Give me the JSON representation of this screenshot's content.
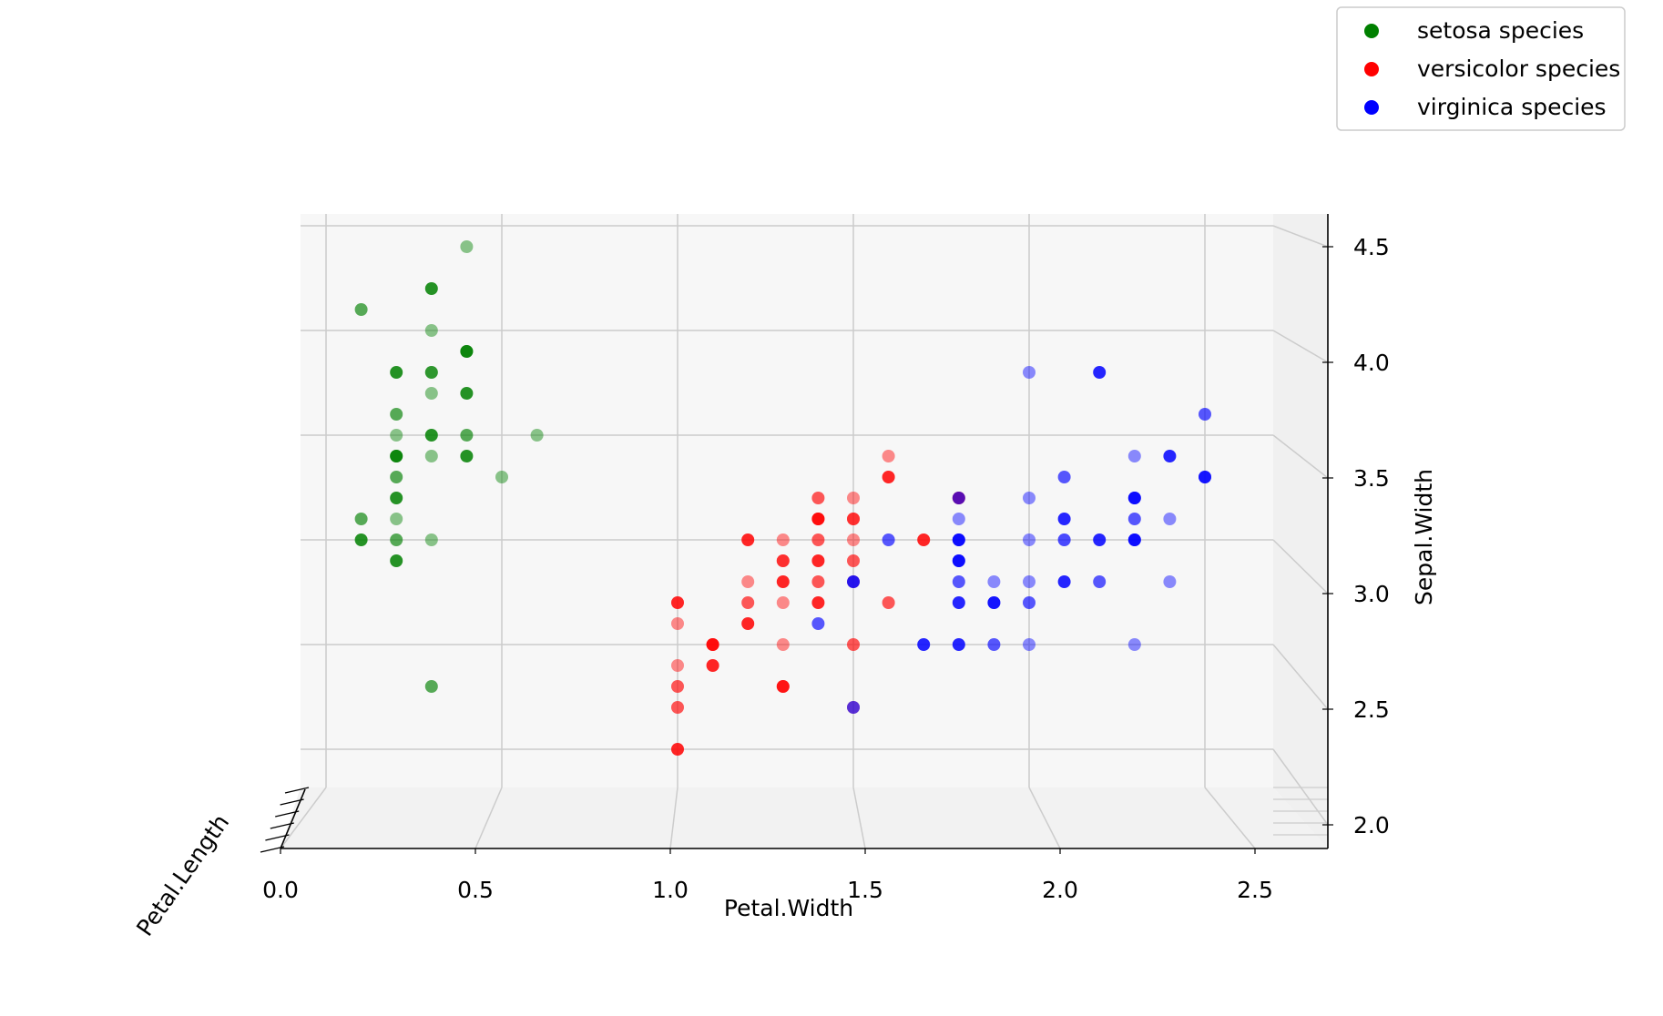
{
  "chart_data": {
    "type": "scatter",
    "projection": "3d",
    "title": "",
    "xlabel": "Petal.Width",
    "ylabel": "Petal.Length",
    "zlabel": "Sepal.Width",
    "xlim": [
      0.0,
      2.6
    ],
    "zlim": [
      2.0,
      4.5
    ],
    "x_ticks": [
      "0.0",
      "0.5",
      "1.0",
      "1.5",
      "2.0",
      "2.5"
    ],
    "z_ticks": [
      "2.0",
      "2.5",
      "3.0",
      "3.5",
      "4.0",
      "4.5"
    ],
    "grid": true,
    "legend_placement": "top-right",
    "series": [
      {
        "name": "setosa species",
        "color": "#008000",
        "points": [
          [
            0.4,
            4.4
          ],
          [
            0.3,
            4.2
          ],
          [
            0.1,
            4.1
          ],
          [
            0.3,
            4.0
          ],
          [
            0.4,
            3.9
          ],
          [
            0.4,
            3.9
          ],
          [
            0.3,
            3.8
          ],
          [
            0.2,
            3.8
          ],
          [
            0.3,
            3.8
          ],
          [
            0.3,
            3.7
          ],
          [
            0.4,
            3.7
          ],
          [
            0.2,
            3.6
          ],
          [
            0.2,
            3.5
          ],
          [
            0.3,
            3.5
          ],
          [
            0.4,
            3.5
          ],
          [
            0.6,
            3.5
          ],
          [
            0.2,
            3.4
          ],
          [
            0.2,
            3.4
          ],
          [
            0.3,
            3.4
          ],
          [
            0.4,
            3.4
          ],
          [
            0.2,
            3.3
          ],
          [
            0.5,
            3.3
          ],
          [
            0.2,
            3.2
          ],
          [
            0.1,
            3.1
          ],
          [
            0.2,
            3.1
          ],
          [
            0.1,
            3.0
          ],
          [
            0.2,
            3.0
          ],
          [
            0.3,
            3.0
          ],
          [
            0.2,
            2.9
          ],
          [
            0.3,
            2.3
          ]
        ]
      },
      {
        "name": "versicolor species",
        "color": "#ff0000",
        "points": [
          [
            1.6,
            3.4
          ],
          [
            1.6,
            3.3
          ],
          [
            1.4,
            3.2
          ],
          [
            1.5,
            3.2
          ],
          [
            1.8,
            3.2
          ],
          [
            1.4,
            3.1
          ],
          [
            1.5,
            3.1
          ],
          [
            1.4,
            3.1
          ],
          [
            1.5,
            3.1
          ],
          [
            1.3,
            3.0
          ],
          [
            1.2,
            3.0
          ],
          [
            1.4,
            3.0
          ],
          [
            1.5,
            3.0
          ],
          [
            1.7,
            3.0
          ],
          [
            1.3,
            2.9
          ],
          [
            1.3,
            2.9
          ],
          [
            1.4,
            2.9
          ],
          [
            1.5,
            2.9
          ],
          [
            1.2,
            2.8
          ],
          [
            1.3,
            2.8
          ],
          [
            1.4,
            2.8
          ],
          [
            1.5,
            2.8
          ],
          [
            1.0,
            2.7
          ],
          [
            1.2,
            2.7
          ],
          [
            1.3,
            2.7
          ],
          [
            1.4,
            2.7
          ],
          [
            1.6,
            2.7
          ],
          [
            1.0,
            2.6
          ],
          [
            1.2,
            2.6
          ],
          [
            1.1,
            2.5
          ],
          [
            1.3,
            2.5
          ],
          [
            1.1,
            2.5
          ],
          [
            1.5,
            2.5
          ],
          [
            1.0,
            2.4
          ],
          [
            1.1,
            2.4
          ],
          [
            1.0,
            2.3
          ],
          [
            1.3,
            2.3
          ],
          [
            1.3,
            2.3
          ],
          [
            1.0,
            2.2
          ],
          [
            1.5,
            2.2
          ],
          [
            1.0,
            2.0
          ]
        ]
      },
      {
        "name": "virginica species",
        "color": "#0000ff",
        "points": [
          [
            2.0,
            3.8
          ],
          [
            2.2,
            3.8
          ],
          [
            2.5,
            3.6
          ],
          [
            2.3,
            3.4
          ],
          [
            2.4,
            3.4
          ],
          [
            2.1,
            3.3
          ],
          [
            2.5,
            3.3
          ],
          [
            2.5,
            3.3
          ],
          [
            1.8,
            3.2
          ],
          [
            2.0,
            3.2
          ],
          [
            2.3,
            3.2
          ],
          [
            2.3,
            3.2
          ],
          [
            1.8,
            3.1
          ],
          [
            2.1,
            3.1
          ],
          [
            2.3,
            3.1
          ],
          [
            2.4,
            3.1
          ],
          [
            1.8,
            3.0
          ],
          [
            1.8,
            3.0
          ],
          [
            2.0,
            3.0
          ],
          [
            2.3,
            3.0
          ],
          [
            1.6,
            3.0
          ],
          [
            2.1,
            3.0
          ],
          [
            2.2,
            3.0
          ],
          [
            2.3,
            3.0
          ],
          [
            2.1,
            3.0
          ],
          [
            1.8,
            2.9
          ],
          [
            1.8,
            2.9
          ],
          [
            2.0,
            2.8
          ],
          [
            2.1,
            2.8
          ],
          [
            2.2,
            2.8
          ],
          [
            2.4,
            2.8
          ],
          [
            1.5,
            2.8
          ],
          [
            1.8,
            2.8
          ],
          [
            1.9,
            2.8
          ],
          [
            1.9,
            2.7
          ],
          [
            2.0,
            2.7
          ],
          [
            1.9,
            2.7
          ],
          [
            1.8,
            2.7
          ],
          [
            1.4,
            2.6
          ],
          [
            2.3,
            2.5
          ],
          [
            1.7,
            2.5
          ],
          [
            1.9,
            2.5
          ],
          [
            2.0,
            2.5
          ],
          [
            1.8,
            2.5
          ],
          [
            1.5,
            2.2
          ]
        ]
      }
    ]
  }
}
